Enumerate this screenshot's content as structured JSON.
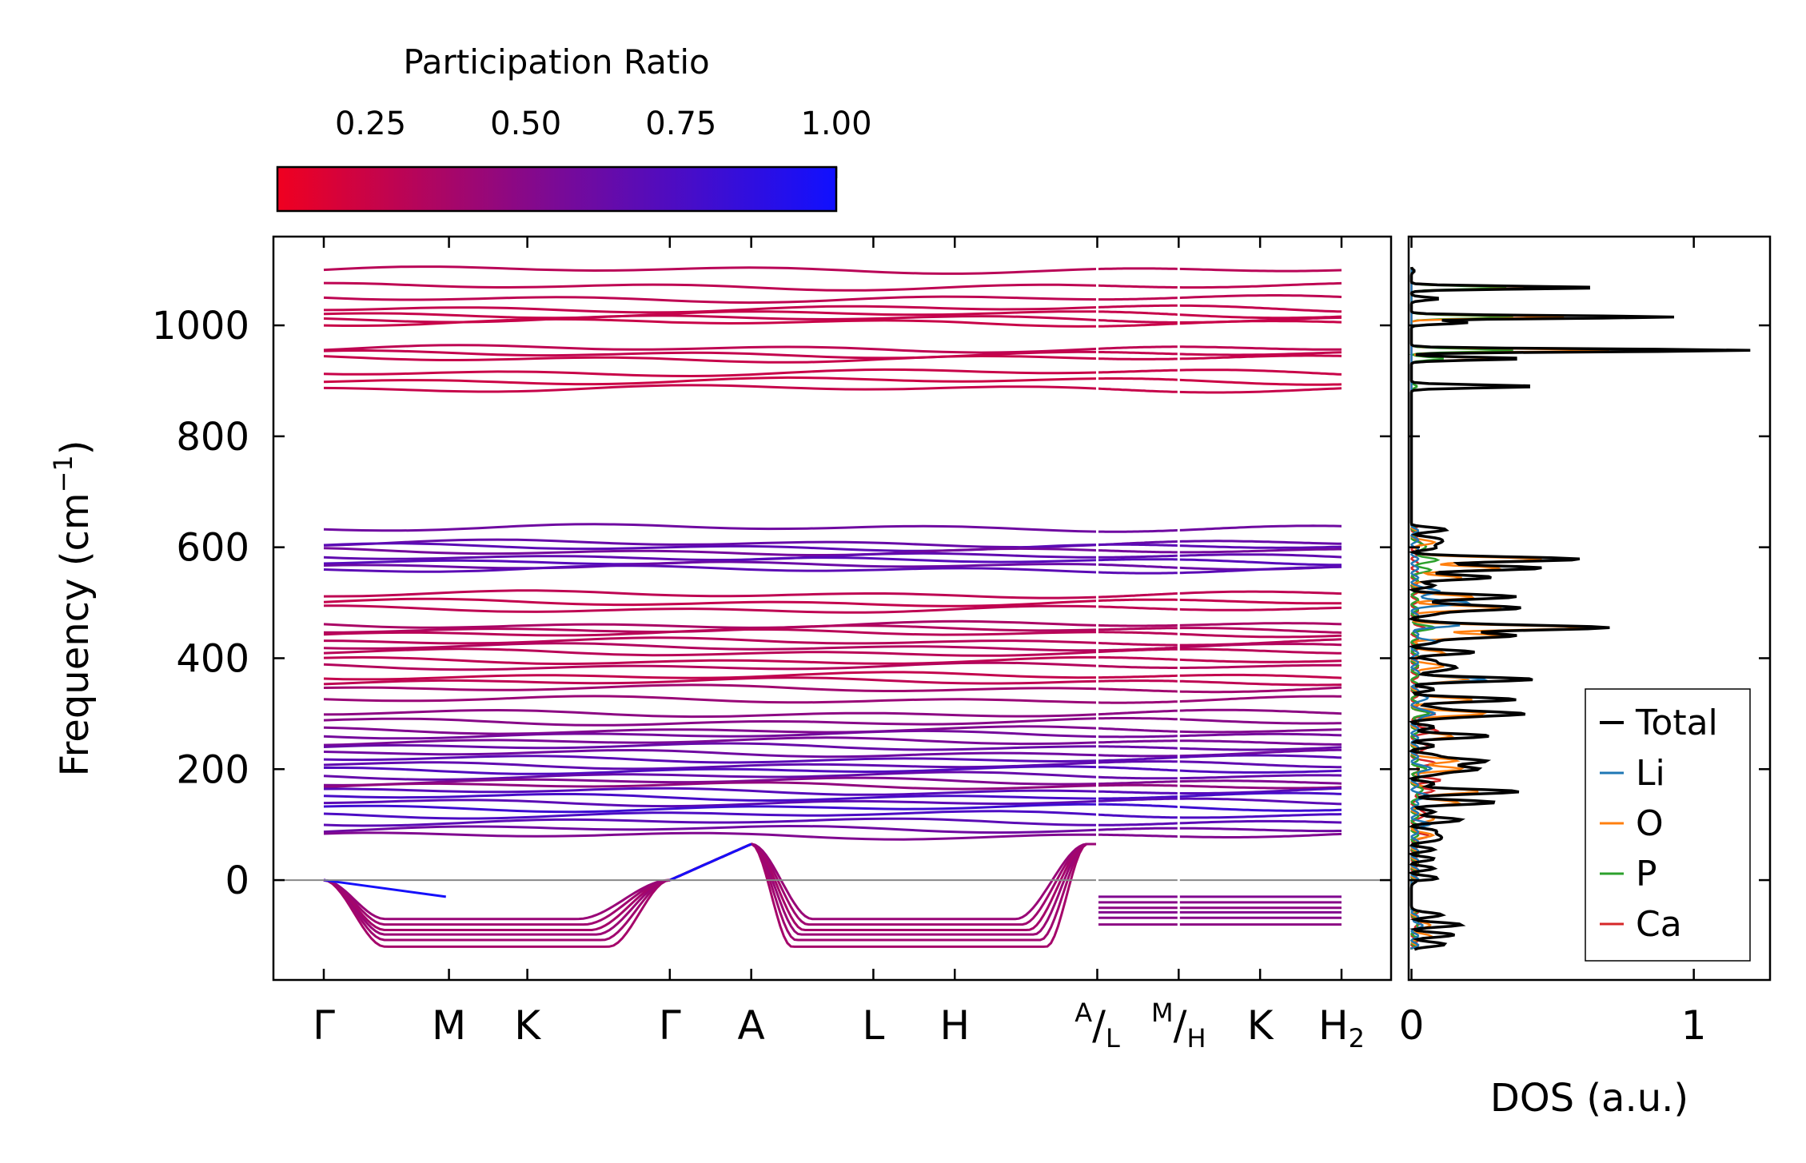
{
  "chart_data": [
    {
      "type": "line",
      "name": "phonon-band-structure",
      "ylabel": "Frequency (cm",
      "ylabel_sup": "−1",
      "ylabel_close": ")",
      "ylim": [
        -180,
        1160
      ],
      "yticks": [
        0,
        200,
        400,
        600,
        800,
        1000
      ],
      "ytick_labels": [
        "0",
        "200",
        "400",
        "600",
        "800",
        "1000"
      ],
      "hline_zero": true,
      "kpath_labels": [
        {
          "main": "Γ",
          "pos": 0.0
        },
        {
          "main": "M",
          "pos": 0.123
        },
        {
          "main": "K",
          "pos": 0.2
        },
        {
          "main": "Γ",
          "pos": 0.34
        },
        {
          "main": "A",
          "pos": 0.42
        },
        {
          "main": "L",
          "pos": 0.54
        },
        {
          "main": "H",
          "pos": 0.62
        },
        {
          "main": "L",
          "sup": "A",
          "slash": "/",
          "pos": 0.76
        },
        {
          "main": "H",
          "sup": "M",
          "slash": "/",
          "pos": 0.84
        },
        {
          "main": "K",
          "pos": 0.92
        },
        {
          "main": "H",
          "sub": "2",
          "pos": 1.0
        }
      ],
      "segment_breaks": [
        0.76,
        0.84
      ],
      "colorbar": {
        "title": "Participation Ratio",
        "min": 0.1,
        "max": 1.0,
        "ticks": [
          0.25,
          0.5,
          0.75,
          1.0
        ],
        "tick_labels": [
          "0.25",
          "0.50",
          "0.75",
          "1.00"
        ],
        "color_low": "#f00020",
        "color_high": "#1010ff"
      },
      "flat_bands": [
        {
          "f": 1100,
          "pr": 0.32
        },
        {
          "f": 1070,
          "pr": 0.3
        },
        {
          "f": 1048,
          "pr": 0.3
        },
        {
          "f": 1030,
          "pr": 0.28
        },
        {
          "f": 1020,
          "pr": 0.27
        },
        {
          "f": 1012,
          "pr": 0.28
        },
        {
          "f": 1005,
          "pr": 0.26
        },
        {
          "f": 958,
          "pr": 0.3
        },
        {
          "f": 948,
          "pr": 0.28
        },
        {
          "f": 940,
          "pr": 0.27
        },
        {
          "f": 915,
          "pr": 0.26
        },
        {
          "f": 900,
          "pr": 0.25
        },
        {
          "f": 886,
          "pr": 0.27
        },
        {
          "f": 635,
          "pr": 0.62
        },
        {
          "f": 607,
          "pr": 0.65
        },
        {
          "f": 600,
          "pr": 0.7
        },
        {
          "f": 592,
          "pr": 0.6
        },
        {
          "f": 583,
          "pr": 0.68
        },
        {
          "f": 575,
          "pr": 0.72
        },
        {
          "f": 567,
          "pr": 0.64
        },
        {
          "f": 560,
          "pr": 0.7
        },
        {
          "f": 515,
          "pr": 0.3
        },
        {
          "f": 500,
          "pr": 0.28
        },
        {
          "f": 488,
          "pr": 0.3
        },
        {
          "f": 460,
          "pr": 0.38
        },
        {
          "f": 452,
          "pr": 0.35
        },
        {
          "f": 445,
          "pr": 0.32
        },
        {
          "f": 430,
          "pr": 0.33
        },
        {
          "f": 420,
          "pr": 0.35
        },
        {
          "f": 410,
          "pr": 0.32
        },
        {
          "f": 395,
          "pr": 0.3
        },
        {
          "f": 385,
          "pr": 0.34
        },
        {
          "f": 368,
          "pr": 0.28
        },
        {
          "f": 358,
          "pr": 0.3
        },
        {
          "f": 345,
          "pr": 0.42
        },
        {
          "f": 325,
          "pr": 0.45
        },
        {
          "f": 300,
          "pr": 0.5
        },
        {
          "f": 285,
          "pr": 0.52
        },
        {
          "f": 270,
          "pr": 0.55
        },
        {
          "f": 262,
          "pr": 0.6
        },
        {
          "f": 250,
          "pr": 0.58
        },
        {
          "f": 240,
          "pr": 0.65
        },
        {
          "f": 228,
          "pr": 0.62
        },
        {
          "f": 218,
          "pr": 0.7
        },
        {
          "f": 207,
          "pr": 0.68
        },
        {
          "f": 198,
          "pr": 0.74
        },
        {
          "f": 188,
          "pr": 0.66
        },
        {
          "f": 178,
          "pr": 0.55
        },
        {
          "f": 170,
          "pr": 0.48
        },
        {
          "f": 160,
          "pr": 0.72
        },
        {
          "f": 150,
          "pr": 0.78
        },
        {
          "f": 140,
          "pr": 0.7
        },
        {
          "f": 130,
          "pr": 0.82
        },
        {
          "f": 118,
          "pr": 0.76
        },
        {
          "f": 105,
          "pr": 0.7
        },
        {
          "f": 92,
          "pr": 0.62
        },
        {
          "f": 80,
          "pr": 0.55
        }
      ],
      "soft_bands": [
        {
          "min": -120,
          "pr": 0.4
        },
        {
          "min": -108,
          "pr": 0.42
        },
        {
          "min": -98,
          "pr": 0.44
        },
        {
          "min": -90,
          "pr": 0.4
        },
        {
          "min": -80,
          "pr": 0.42
        },
        {
          "min": -70,
          "pr": 0.45
        }
      ]
    },
    {
      "type": "line",
      "name": "phonon-dos",
      "xlabel": "DOS (a.u.)",
      "xlim": [
        -0.01,
        1.27
      ],
      "xticks": [
        0,
        1
      ],
      "xtick_labels": [
        "0",
        "1"
      ],
      "series": [
        {
          "name": "Total",
          "color": "#000000",
          "peaks": [
            [
              1098,
              0.01
            ],
            [
              1068,
              0.68
            ],
            [
              1048,
              0.1
            ],
            [
              1015,
              0.93
            ],
            [
              1005,
              0.2
            ],
            [
              955,
              1.2
            ],
            [
              940,
              0.4
            ],
            [
              890,
              0.45
            ],
            [
              630,
              0.05
            ],
            [
              608,
              0.1
            ],
            [
              578,
              0.55
            ],
            [
              562,
              0.4
            ],
            [
              545,
              0.22
            ],
            [
              510,
              0.32
            ],
            [
              490,
              0.38
            ],
            [
              455,
              0.7
            ],
            [
              440,
              0.35
            ],
            [
              410,
              0.15
            ],
            [
              385,
              0.15
            ],
            [
              362,
              0.36
            ],
            [
              325,
              0.3
            ],
            [
              300,
              0.4
            ],
            [
              260,
              0.2
            ],
            [
              215,
              0.26
            ],
            [
              200,
              0.24
            ],
            [
              160,
              0.32
            ],
            [
              140,
              0.22
            ],
            [
              110,
              0.12
            ],
            [
              80,
              0.1
            ],
            [
              0,
              0.02
            ],
            [
              -60,
              0.04
            ],
            [
              -80,
              0.1
            ],
            [
              -100,
              0.08
            ],
            [
              -118,
              0.05
            ]
          ]
        },
        {
          "name": "Li",
          "color": "#1f77b4",
          "peaks": [
            [
              520,
              0.1
            ],
            [
              500,
              0.2
            ],
            [
              460,
              0.15
            ],
            [
              430,
              0.08
            ],
            [
              362,
              0.25
            ],
            [
              330,
              0.05
            ],
            [
              300,
              0.08
            ],
            [
              200,
              0.06
            ],
            [
              150,
              0.05
            ],
            [
              100,
              0.05
            ],
            [
              -80,
              0.02
            ]
          ]
        },
        {
          "name": "O",
          "color": "#ff7f0e",
          "peaks": [
            [
              1068,
              0.5
            ],
            [
              1015,
              0.54
            ],
            [
              955,
              0.7
            ],
            [
              940,
              0.3
            ],
            [
              890,
              0.44
            ],
            [
              608,
              0.06
            ],
            [
              578,
              0.45
            ],
            [
              562,
              0.3
            ],
            [
              545,
              0.16
            ],
            [
              510,
              0.2
            ],
            [
              490,
              0.3
            ],
            [
              455,
              0.6
            ],
            [
              440,
              0.3
            ],
            [
              410,
              0.1
            ],
            [
              385,
              0.1
            ],
            [
              362,
              0.2
            ],
            [
              325,
              0.2
            ],
            [
              300,
              0.25
            ],
            [
              260,
              0.14
            ],
            [
              215,
              0.15
            ],
            [
              200,
              0.16
            ],
            [
              160,
              0.24
            ],
            [
              140,
              0.16
            ],
            [
              110,
              0.08
            ],
            [
              80,
              0.06
            ],
            [
              -80,
              0.06
            ],
            [
              -100,
              0.05
            ]
          ]
        },
        {
          "name": "P",
          "color": "#2ca02c",
          "peaks": [
            [
              1068,
              0.36
            ],
            [
              1015,
              0.36
            ],
            [
              955,
              0.36
            ],
            [
              940,
              0.12
            ],
            [
              890,
              0.02
            ],
            [
              600,
              0.05
            ],
            [
              578,
              0.08
            ],
            [
              560,
              0.05
            ],
            [
              455,
              0.06
            ],
            [
              300,
              0.04
            ],
            [
              200,
              0.03
            ],
            [
              160,
              0.03
            ],
            [
              -80,
              0.02
            ]
          ]
        },
        {
          "name": "Ca",
          "color": "#d62728",
          "peaks": [
            [
              610,
              0.02
            ],
            [
              455,
              0.03
            ],
            [
              300,
              0.06
            ],
            [
              270,
              0.08
            ],
            [
              240,
              0.06
            ],
            [
              210,
              0.07
            ],
            [
              180,
              0.08
            ],
            [
              160,
              0.06
            ],
            [
              120,
              0.05
            ],
            [
              80,
              0.04
            ],
            [
              -80,
              0.02
            ]
          ]
        }
      ],
      "legend": "lower-right"
    }
  ]
}
